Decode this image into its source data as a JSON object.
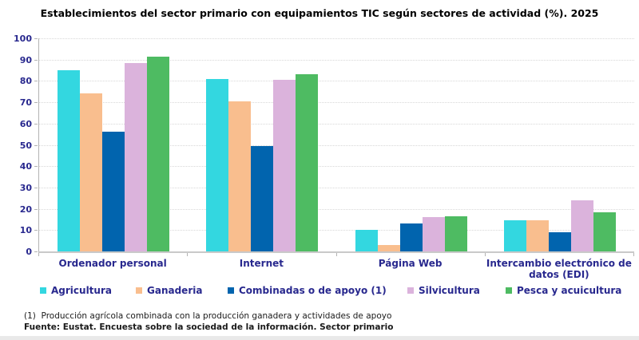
{
  "title": "Establecimientos del sector primario con equipamientos TIC según sectores de actividad (%). 2025",
  "colors": {
    "text_navy": "#28288E",
    "title_black": "#000000",
    "gridline": "#d8d8d8",
    "axis": "#b3b3b3",
    "baseline": "#c9c9c9",
    "bottom_strip": "#e9e9e9"
  },
  "chart_data": {
    "type": "bar",
    "categories": [
      "Ordenador personal",
      "Internet",
      "Página Web",
      "Intercambio electrónico de datos (EDI)"
    ],
    "series": [
      {
        "name": "Agricultura",
        "color": "#33D7E0",
        "values": [
          85,
          81,
          10,
          14.5
        ]
      },
      {
        "name": "Ganaderia",
        "color": "#F9BE8E",
        "values": [
          74,
          70.5,
          3,
          14.5
        ]
      },
      {
        "name": "Combinadas o de apoyo (1)",
        "color": "#0164AE",
        "values": [
          56,
          49.5,
          13,
          9
        ]
      },
      {
        "name": "Silvicultura",
        "color": "#DBB3DC",
        "values": [
          88.5,
          80.5,
          16,
          24
        ]
      },
      {
        "name": "Pesca y acuicultura",
        "color": "#4EBB62",
        "values": [
          91.5,
          83,
          16.5,
          18.5
        ]
      }
    ],
    "title": "Establecimientos del sector primario con equipamientos TIC según sectores de actividad (%). 2025",
    "xlabel": "",
    "ylabel": "",
    "ylim": [
      0,
      100
    ],
    "ytick_step": 10,
    "grid": "horizontal-dotted",
    "legend_position": "bottom"
  },
  "footnotes": {
    "note1": "(1)  Producción agrícola combinada con la producción ganadera y actividades de apoyo",
    "source": "Fuente: Eustat. Encuesta sobre la sociedad de la información. Sector primario"
  }
}
